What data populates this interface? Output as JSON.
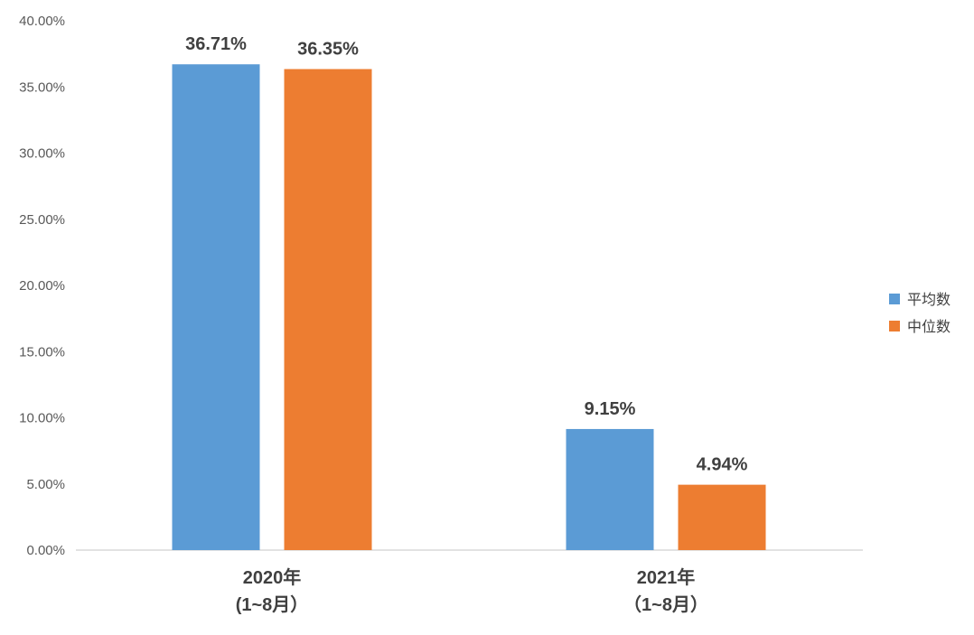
{
  "chart_data": {
    "type": "bar",
    "title": "",
    "xlabel": "",
    "ylabel": "",
    "categories": [
      [
        "2020年",
        "(1~8月）"
      ],
      [
        "2021年",
        "（1~8月）"
      ]
    ],
    "series": [
      {
        "name": "平均数",
        "color": "#5B9BD5",
        "values": [
          36.71,
          9.15
        ],
        "labels": [
          "36.71%",
          "9.15%"
        ]
      },
      {
        "name": "中位数",
        "color": "#ED7D31",
        "values": [
          36.35,
          4.94
        ],
        "labels": [
          "36.35%",
          "4.94%"
        ]
      }
    ],
    "ylim": [
      0,
      40
    ],
    "yticks": [
      0,
      5,
      10,
      15,
      20,
      25,
      30,
      35,
      40
    ],
    "ytick_labels": [
      "0.00%",
      "5.00%",
      "10.00%",
      "15.00%",
      "20.00%",
      "25.00%",
      "30.00%",
      "35.00%",
      "40.00%"
    ],
    "grid": false,
    "legend": "right"
  }
}
